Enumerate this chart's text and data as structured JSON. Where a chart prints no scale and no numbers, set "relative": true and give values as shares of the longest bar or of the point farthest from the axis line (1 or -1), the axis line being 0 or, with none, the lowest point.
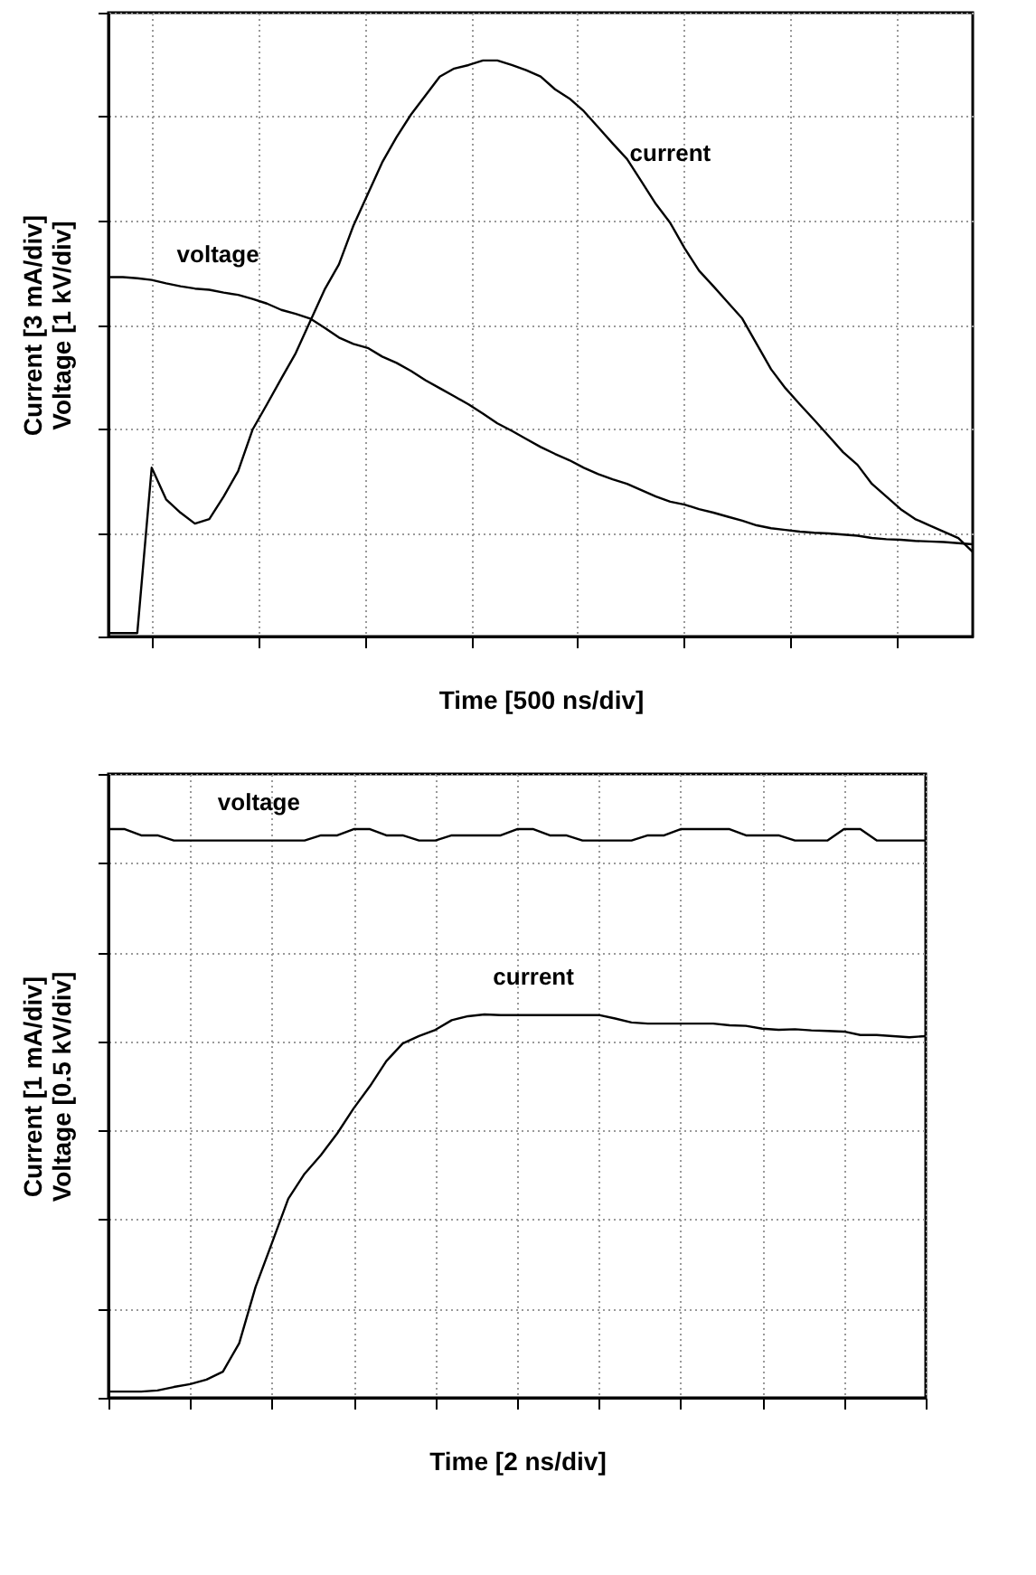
{
  "chart_data": [
    {
      "type": "line",
      "relative": true,
      "xlabel": "Time [500 ns/div]",
      "ylabel": "Current [3 mA/div]\nVoltage [1 kV/div]",
      "grid": true,
      "legend": false,
      "line_style": "solid",
      "marker": "none",
      "categories": [
        null,
        null,
        null,
        null,
        null,
        null,
        null,
        null,
        null,
        null,
        null,
        null,
        null,
        null,
        null,
        null,
        null,
        null,
        null,
        null,
        null,
        null,
        null,
        null,
        null,
        null,
        null,
        null,
        null,
        null,
        null,
        null,
        null,
        null,
        null,
        null,
        null,
        null,
        null,
        null,
        null,
        null,
        null,
        null,
        null,
        null,
        null,
        null,
        null,
        null,
        null,
        null,
        null,
        null,
        null,
        null,
        null,
        null,
        null,
        null,
        null
      ],
      "series": [
        {
          "name": "current",
          "color": "#000000",
          "values": [
            0.006,
            0.006,
            0.006,
            0.293,
            0.238,
            0.215,
            0.196,
            0.204,
            0.243,
            0.287,
            0.359,
            0.403,
            0.448,
            0.492,
            0.547,
            0.602,
            0.646,
            0.713,
            0.768,
            0.823,
            0.867,
            0.906,
            0.939,
            0.972,
            0.986,
            0.992,
            1.0,
            1.0,
            0.992,
            0.983,
            0.972,
            0.95,
            0.934,
            0.912,
            0.884,
            0.856,
            0.829,
            0.79,
            0.751,
            0.718,
            0.674,
            0.635,
            0.608,
            0.58,
            0.552,
            0.508,
            0.464,
            0.431,
            0.403,
            0.376,
            0.348,
            0.32,
            0.298,
            0.265,
            0.243,
            0.221,
            0.204,
            0.193,
            0.182,
            0.171,
            0.147
          ]
        },
        {
          "name": "voltage",
          "color": "#000000",
          "values": [
            0.624,
            0.624,
            0.622,
            0.619,
            0.613,
            0.608,
            0.604,
            0.602,
            0.597,
            0.593,
            0.586,
            0.578,
            0.567,
            0.56,
            0.552,
            0.536,
            0.519,
            0.508,
            0.501,
            0.486,
            0.475,
            0.461,
            0.445,
            0.431,
            0.417,
            0.403,
            0.387,
            0.37,
            0.357,
            0.343,
            0.329,
            0.317,
            0.306,
            0.293,
            0.282,
            0.273,
            0.265,
            0.254,
            0.243,
            0.234,
            0.229,
            0.221,
            0.215,
            0.208,
            0.201,
            0.193,
            0.188,
            0.185,
            0.182,
            0.18,
            0.179,
            0.177,
            0.175,
            0.171,
            0.169,
            0.168,
            0.166,
            0.165,
            0.164,
            0.162,
            0.16
          ]
        }
      ]
    },
    {
      "type": "line",
      "relative": true,
      "xlabel": "Time [2 ns/div]",
      "ylabel": "Current [1 mA/div]\nVoltage [0.5 kV/div]",
      "grid": true,
      "legend": false,
      "line_style": "solid",
      "marker": "none",
      "categories": [
        null,
        null,
        null,
        null,
        null,
        null,
        null,
        null,
        null,
        null,
        null,
        null,
        null,
        null,
        null,
        null,
        null,
        null,
        null,
        null,
        null,
        null,
        null,
        null,
        null,
        null,
        null,
        null,
        null,
        null,
        null,
        null,
        null,
        null,
        null,
        null,
        null,
        null,
        null,
        null,
        null,
        null,
        null,
        null,
        null,
        null,
        null,
        null,
        null,
        null,
        null
      ],
      "series": [
        {
          "name": "voltage",
          "color": "#000000",
          "values": [
            1.0,
            1.0,
            0.989,
            0.989,
            0.98,
            0.98,
            0.98,
            0.98,
            0.98,
            0.98,
            0.98,
            0.98,
            0.98,
            0.989,
            0.989,
            1.0,
            1.0,
            0.989,
            0.989,
            0.98,
            0.98,
            0.989,
            0.989,
            0.989,
            0.989,
            1.0,
            1.0,
            0.989,
            0.989,
            0.98,
            0.98,
            0.98,
            0.98,
            0.989,
            0.989,
            1.0,
            1.0,
            1.0,
            1.0,
            0.989,
            0.989,
            0.989,
            0.98,
            0.98,
            0.98,
            1.0,
            1.0,
            0.98,
            0.98,
            0.98,
            0.98
          ]
        },
        {
          "name": "current",
          "color": "#000000",
          "values": [
            0.011,
            0.011,
            0.011,
            0.013,
            0.019,
            0.024,
            0.032,
            0.046,
            0.096,
            0.195,
            0.272,
            0.35,
            0.394,
            0.427,
            0.465,
            0.509,
            0.548,
            0.592,
            0.623,
            0.636,
            0.647,
            0.664,
            0.671,
            0.674,
            0.673,
            0.673,
            0.673,
            0.673,
            0.673,
            0.673,
            0.673,
            0.667,
            0.66,
            0.658,
            0.658,
            0.658,
            0.658,
            0.658,
            0.655,
            0.654,
            0.649,
            0.647,
            0.648,
            0.646,
            0.645,
            0.644,
            0.638,
            0.638,
            0.636,
            0.634,
            0.636
          ]
        }
      ]
    }
  ]
}
